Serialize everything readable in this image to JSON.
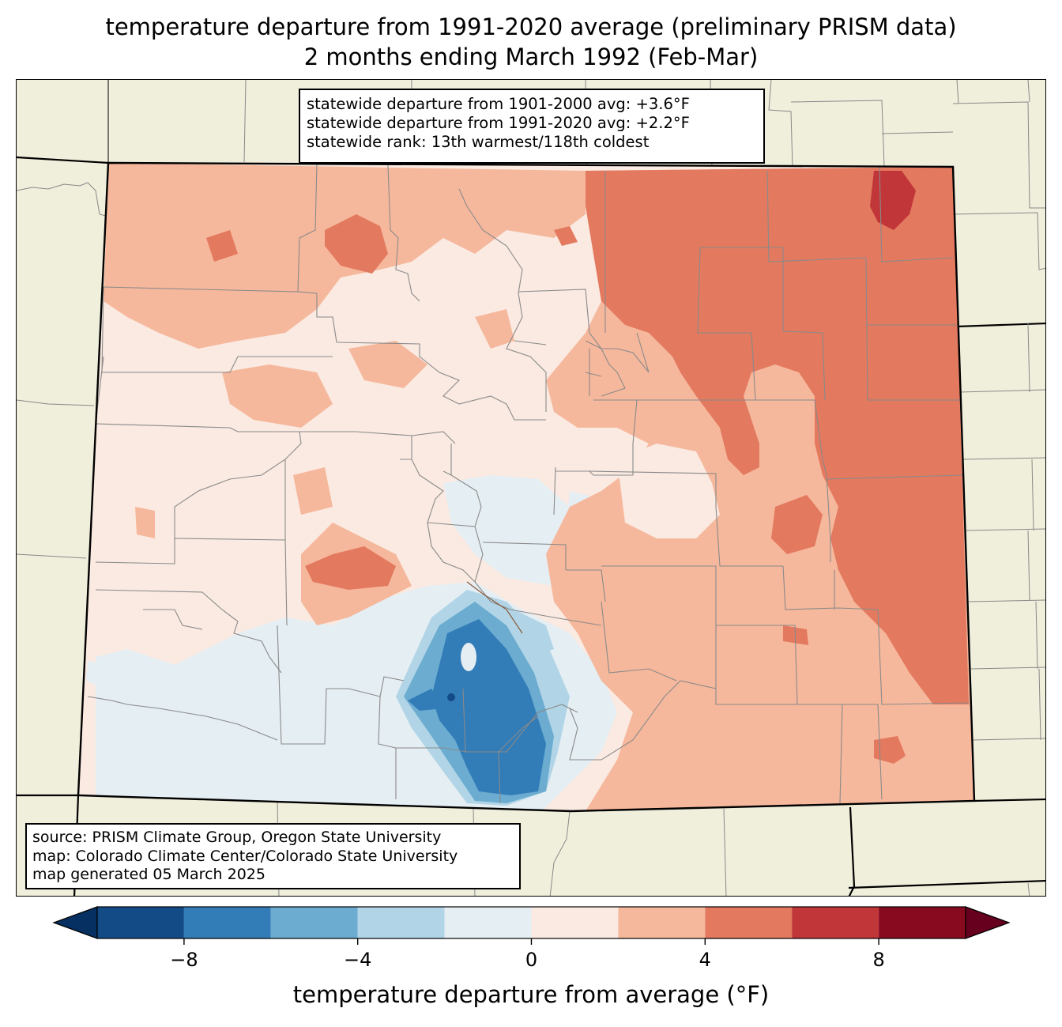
{
  "title": {
    "line1": "temperature departure from 1991-2020 average (preliminary PRISM data)",
    "line2": "2 months ending March 1992 (Feb-Mar)"
  },
  "stats": {
    "line1": "statewide departure from 1901-2000 avg: +3.6°F",
    "line2": "statewide departure from 1991-2020 avg: +2.2°F",
    "line3": "statewide rank: 13th warmest/118th coldest"
  },
  "source": {
    "line1": "source: PRISM Climate Group, Oregon State University",
    "line2": "map: Colorado Climate Center/Colorado State University",
    "line3": "map generated 05 March 2025"
  },
  "colorbar": {
    "label": "temperature departure from average (°F)",
    "tick_labels": [
      "−8",
      "−4",
      "0",
      "4",
      "8"
    ],
    "tick_values": [
      -8,
      -4,
      0,
      4,
      8
    ],
    "range": [
      -10,
      10
    ],
    "levels": [
      -10,
      -8,
      -6,
      -4,
      -2,
      0,
      2,
      4,
      6,
      8,
      10
    ],
    "colors": [
      "#134b87",
      "#327cb7",
      "#6bacd0",
      "#b1d5e7",
      "#e5eef3",
      "#faeae1",
      "#f6b89c",
      "#e3795f",
      "#c13639",
      "#880a1f"
    ],
    "under_color": "#053061",
    "over_color": "#67001f"
  },
  "map_colors": {
    "land_outside": "#f0efdc",
    "state_border": "#000000",
    "county_lines": "#808080"
  }
}
